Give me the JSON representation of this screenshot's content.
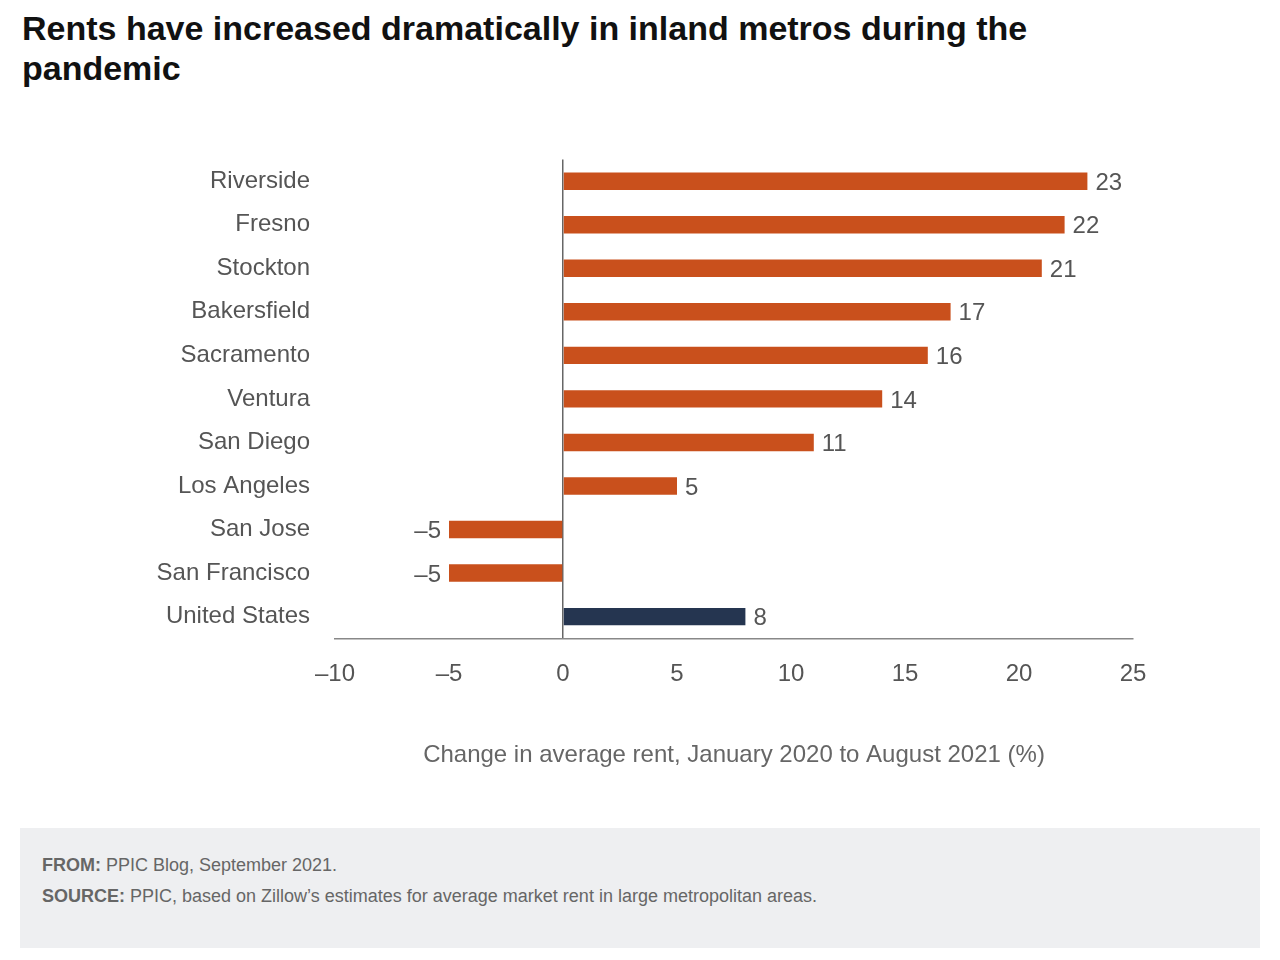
{
  "chart_data": {
    "type": "bar",
    "orientation": "horizontal",
    "title": "Rents have increased dramatically in inland metros during the pandemic",
    "categories": [
      "Riverside",
      "Fresno",
      "Stockton",
      "Bakersfield",
      "Sacramento",
      "Ventura",
      "San Diego",
      "Los Angeles",
      "San Jose",
      "San Francisco",
      "United States"
    ],
    "values": [
      23,
      22,
      21,
      17,
      16,
      14,
      11,
      5,
      -5,
      -5,
      8
    ],
    "value_labels": [
      "23",
      "22",
      "21",
      "17",
      "16",
      "14",
      "11",
      "5",
      "–5",
      "–5",
      "8"
    ],
    "colors": [
      "#c9501c",
      "#c9501c",
      "#c9501c",
      "#c9501c",
      "#c9501c",
      "#c9501c",
      "#c9501c",
      "#c9501c",
      "#c9501c",
      "#c9501c",
      "#253550"
    ],
    "xlabel": "Change in average rent, January 2020 to August 2021 (%)",
    "xlim": [
      -10,
      25
    ],
    "xticks": [
      {
        "value": -10,
        "label": "–10"
      },
      {
        "value": -5,
        "label": "–5"
      },
      0,
      5,
      10,
      15,
      20,
      25
    ],
    "grid": false,
    "data_labels": true,
    "annotations": [
      {
        "label": "FROM:",
        "text": "PPIC Blog, September 2021."
      },
      {
        "label": "SOURCE:",
        "text": "PPIC, based on Zillow’s estimates for average market rent in large metropolitan areas."
      }
    ]
  }
}
